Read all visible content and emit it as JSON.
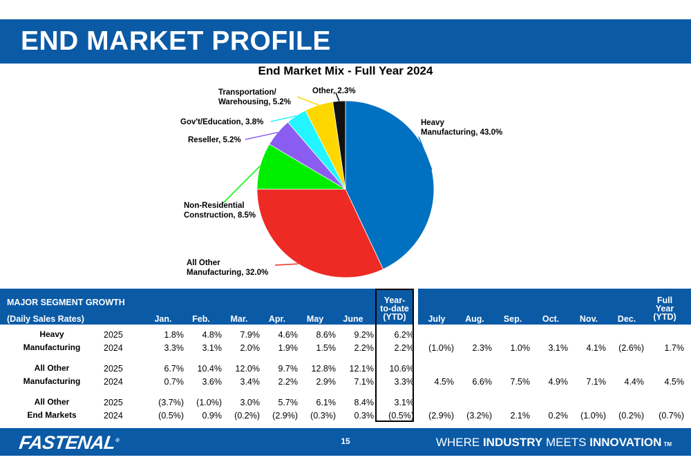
{
  "slide": {
    "title": "END MARKET PROFILE",
    "page_number": "15"
  },
  "chart_data": {
    "type": "pie",
    "title": "End Market Mix - Full Year 2024",
    "slices": [
      {
        "label_lines": [
          "Heavy",
          "Manufacturing, 43.0%"
        ],
        "name": "Heavy Manufacturing",
        "value": 43.0,
        "color": "#0070c0"
      },
      {
        "label_lines": [
          "All Other",
          "Manufacturing, 32.0%"
        ],
        "name": "All Other Manufacturing",
        "value": 32.0,
        "color": "#ee2a24"
      },
      {
        "label_lines": [
          "Non-Residential",
          "Construction, 8.5%"
        ],
        "name": "Non-Residential Construction",
        "value": 8.5,
        "color": "#00ee00"
      },
      {
        "label_lines": [
          "Reseller, 5.2%"
        ],
        "name": "Reseller",
        "value": 5.2,
        "color": "#8b5cf0"
      },
      {
        "label_lines": [
          "Gov't/Education, 3.8%"
        ],
        "name": "Gov't/Education",
        "value": 3.8,
        "color": "#22f5ff"
      },
      {
        "label_lines": [
          "Transportation/",
          "Warehousing, 5.2%"
        ],
        "name": "Transportation/Warehousing",
        "value": 5.2,
        "color": "#ffd700"
      },
      {
        "label_lines": [
          "Other, 2.3%"
        ],
        "name": "Other",
        "value": 2.3,
        "color": "#111111"
      }
    ]
  },
  "table": {
    "title": "MAJOR SEGMENT GROWTH",
    "subtitle": "(Daily Sales Rates)",
    "months_h1": [
      "Jan.",
      "Feb.",
      "Mar.",
      "Apr.",
      "May",
      "June"
    ],
    "ytd_header": [
      "Year-",
      "to-date",
      "(YTD)"
    ],
    "months_h2": [
      "July",
      "Aug.",
      "Sep.",
      "Oct.",
      "Nov.",
      "Dec."
    ],
    "fy_header": [
      "Full",
      "Year",
      "(YTD)"
    ],
    "segments": [
      {
        "name": [
          "Heavy",
          "Manufacturing"
        ],
        "rows": [
          {
            "year": "2025",
            "h1": [
              "1.8%",
              "4.8%",
              "7.9%",
              "4.6%",
              "8.6%",
              "9.2%"
            ],
            "ytd": "6.2%",
            "h2": [
              "",
              "",
              "",
              "",
              "",
              ""
            ],
            "fy": ""
          },
          {
            "year": "2024",
            "h1": [
              "3.3%",
              "3.1%",
              "2.0%",
              "1.9%",
              "1.5%",
              "2.2%"
            ],
            "ytd": "2.2%",
            "h2": [
              "(1.0%)",
              "2.3%",
              "1.0%",
              "3.1%",
              "4.1%",
              "(2.6%)"
            ],
            "fy": "1.7%"
          }
        ]
      },
      {
        "name": [
          "All Other",
          "Manufacturing"
        ],
        "rows": [
          {
            "year": "2025",
            "h1": [
              "6.7%",
              "10.4%",
              "12.0%",
              "9.7%",
              "12.8%",
              "12.1%"
            ],
            "ytd": "10.6%",
            "h2": [
              "",
              "",
              "",
              "",
              "",
              ""
            ],
            "fy": ""
          },
          {
            "year": "2024",
            "h1": [
              "0.7%",
              "3.6%",
              "3.4%",
              "2.2%",
              "2.9%",
              "7.1%"
            ],
            "ytd": "3.3%",
            "h2": [
              "4.5%",
              "6.6%",
              "7.5%",
              "4.9%",
              "7.1%",
              "4.4%"
            ],
            "fy": "4.5%"
          }
        ]
      },
      {
        "name": [
          "All Other",
          "End Markets"
        ],
        "rows": [
          {
            "year": "2025",
            "h1": [
              "(3.7%)",
              "(1.0%)",
              "3.0%",
              "5.7%",
              "6.1%",
              "8.4%"
            ],
            "ytd": "3.1%",
            "h2": [
              "",
              "",
              "",
              "",
              "",
              ""
            ],
            "fy": ""
          },
          {
            "year": "2024",
            "h1": [
              "(0.5%)",
              "0.9%",
              "(0.2%)",
              "(2.9%)",
              "(0.3%)",
              "0.3%"
            ],
            "ytd": "(0.5%)",
            "h2": [
              "(2.9%)",
              "(3.2%)",
              "2.1%",
              "0.2%",
              "(1.0%)",
              "(0.2%)"
            ],
            "fy": "(0.7%)"
          }
        ]
      }
    ]
  },
  "footer": {
    "logo_text": "FASTENAL",
    "logo_mark": "®",
    "tagline_prefix": "WHERE",
    "tagline_word1": "INDUSTRY",
    "tagline_middle": "MEETS",
    "tagline_word2": "INNOVATION",
    "tagline_tm": "TM"
  }
}
